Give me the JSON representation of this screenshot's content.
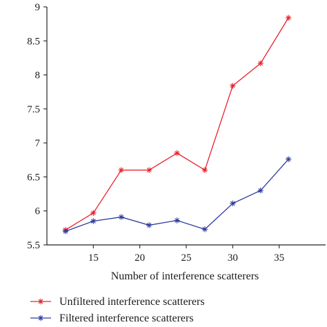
{
  "chart_data": {
    "type": "line",
    "title": "",
    "xlabel": "Number of interference scatterers",
    "ylabel": "",
    "x": [
      12,
      15,
      18,
      21,
      24,
      27,
      30,
      33,
      36
    ],
    "xlim": [
      10,
      40
    ],
    "ylim": [
      5.5,
      9
    ],
    "xticks": [
      15,
      20,
      25,
      30,
      35
    ],
    "xtick_labels": [
      "15",
      "20",
      "25",
      "30",
      "35"
    ],
    "yticks": [
      5.5,
      6,
      6.5,
      7,
      7.5,
      8,
      8.5,
      9
    ],
    "ytick_labels": [
      "5.5",
      "6",
      "6.5",
      "7",
      "7.5",
      "8",
      "8.5",
      "9"
    ],
    "grid": false,
    "legend_position": "bottom",
    "series": [
      {
        "name": "Unfiltered interference scatterers",
        "color": "#e8202a",
        "marker": "asterisk",
        "values": [
          5.72,
          5.97,
          6.6,
          6.6,
          6.85,
          6.6,
          7.84,
          8.17,
          8.84
        ]
      },
      {
        "name": "Filtered interference scatterers",
        "color": "#2e3a9c",
        "marker": "asterisk",
        "values": [
          5.7,
          5.85,
          5.91,
          5.79,
          5.86,
          5.73,
          6.11,
          6.3,
          6.76
        ]
      }
    ]
  }
}
